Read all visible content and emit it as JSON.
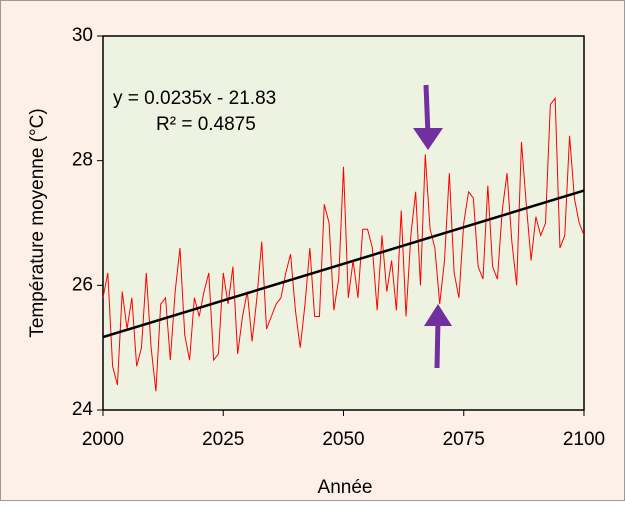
{
  "chart_data": {
    "type": "line",
    "xlabel": "Année",
    "ylabel": "Température moyenne (°C)",
    "annotations": [
      "y = 0.0235x - 21.83",
      "R² = 0.4875"
    ],
    "x": [
      2000,
      2001,
      2002,
      2003,
      2004,
      2005,
      2006,
      2007,
      2008,
      2009,
      2010,
      2011,
      2012,
      2013,
      2014,
      2015,
      2016,
      2017,
      2018,
      2019,
      2020,
      2021,
      2022,
      2023,
      2024,
      2025,
      2026,
      2027,
      2028,
      2029,
      2030,
      2031,
      2032,
      2033,
      2034,
      2035,
      2036,
      2037,
      2038,
      2039,
      2040,
      2041,
      2042,
      2043,
      2044,
      2045,
      2046,
      2047,
      2048,
      2049,
      2050,
      2051,
      2052,
      2053,
      2054,
      2055,
      2056,
      2057,
      2058,
      2059,
      2060,
      2061,
      2062,
      2063,
      2064,
      2065,
      2066,
      2067,
      2068,
      2069,
      2070,
      2071,
      2072,
      2073,
      2074,
      2075,
      2076,
      2077,
      2078,
      2079,
      2080,
      2081,
      2082,
      2083,
      2084,
      2085,
      2086,
      2087,
      2088,
      2089,
      2090,
      2091,
      2092,
      2093,
      2094,
      2095,
      2096,
      2097,
      2098,
      2099,
      2100
    ],
    "series": [
      {
        "color": "#ff0000",
        "values": [
          25.8,
          26.2,
          24.7,
          24.4,
          25.9,
          25.3,
          25.8,
          24.7,
          25.0,
          26.2,
          25.0,
          24.3,
          25.7,
          25.8,
          24.8,
          25.9,
          26.6,
          25.2,
          24.8,
          25.8,
          25.5,
          25.9,
          26.2,
          24.8,
          24.9,
          26.2,
          25.7,
          26.3,
          24.9,
          25.5,
          25.9,
          25.1,
          25.8,
          26.7,
          25.3,
          25.5,
          25.7,
          25.8,
          26.2,
          26.5,
          25.6,
          25.0,
          25.7,
          26.6,
          25.5,
          25.5,
          27.3,
          27.0,
          25.6,
          26.1,
          27.9,
          25.8,
          26.4,
          25.8,
          26.9,
          26.9,
          26.6,
          25.6,
          26.8,
          25.9,
          26.4,
          25.6,
          27.2,
          25.5,
          26.8,
          27.5,
          26.0,
          28.1,
          26.9,
          26.6,
          25.7,
          26.4,
          27.8,
          26.2,
          25.8,
          27.0,
          27.5,
          27.4,
          26.3,
          26.1,
          27.6,
          26.3,
          26.1,
          27.2,
          27.8,
          26.7,
          26.0,
          28.3,
          27.3,
          26.4,
          27.1,
          26.8,
          27.0,
          28.9,
          29.0,
          26.6,
          26.8,
          28.4,
          27.4,
          27.0,
          26.8
        ]
      }
    ],
    "trendline": {
      "color": "#000000",
      "x": [
        2000,
        2100
      ],
      "values": [
        25.17,
        27.52
      ]
    },
    "xlim": [
      2000,
      2100
    ],
    "xticks": [
      2000,
      2025,
      2050,
      2075,
      2100
    ],
    "ylim": [
      24,
      30
    ],
    "yticks": [
      24,
      26,
      28,
      30
    ]
  }
}
